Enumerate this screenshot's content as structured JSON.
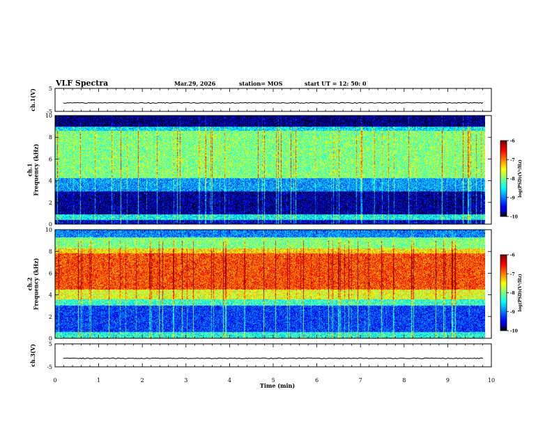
{
  "header": {
    "title": "VLF Spectra",
    "date": "Mar.29, 2026",
    "station": "station= MOS",
    "start": "start  UT =   12: 50: 0"
  },
  "chart_data": [
    {
      "type": "line",
      "name": "ch1-waveform",
      "ylabel": "ch.1(V)",
      "ylim": [
        -5,
        5
      ],
      "yticks": [
        5,
        -5
      ],
      "xlim": [
        0,
        10
      ],
      "y_baseline": -1.3
    },
    {
      "type": "heatmap",
      "name": "ch1-spectrogram",
      "ylabel": "ch.1\nFrequency (kHz)",
      "ylim": [
        0,
        10
      ],
      "yticks": [
        0,
        2,
        4,
        6,
        8,
        10
      ],
      "xlim": [
        0,
        10
      ],
      "data_end_min": 9.85,
      "colorbar": {
        "label": "log(PSD)(V²/Hz)",
        "range": [
          -10,
          -6
        ],
        "ticks": [
          -6,
          -7,
          -8,
          -9,
          -10
        ]
      },
      "bands": [
        {
          "from": 9.0,
          "to": 10.0,
          "level": -9.9
        },
        {
          "from": 8.6,
          "to": 9.0,
          "level": -8.6
        },
        {
          "from": 4.2,
          "to": 8.6,
          "level": -8.0
        },
        {
          "from": 3.0,
          "to": 4.2,
          "level": -8.9
        },
        {
          "from": 0.9,
          "to": 3.0,
          "level": -9.8
        },
        {
          "from": 0.4,
          "to": 0.9,
          "level": -8.5
        },
        {
          "from": 0.0,
          "to": 0.4,
          "level": -9.6
        }
      ]
    },
    {
      "type": "heatmap",
      "name": "ch2-spectrogram",
      "ylabel": "ch.2\nFrequency (kHz)",
      "ylim": [
        0,
        10
      ],
      "yticks": [
        0,
        2,
        4,
        6,
        8,
        10
      ],
      "xlim": [
        0,
        10
      ],
      "data_end_min": 9.85,
      "colorbar": {
        "label": "log(PSD)(V²/Hz)",
        "range": [
          -10,
          -6
        ],
        "ticks": [
          -6,
          -7,
          -8,
          -9,
          -10
        ]
      },
      "bands": [
        {
          "from": 9.3,
          "to": 10.0,
          "level": -9.0
        },
        {
          "from": 8.3,
          "to": 9.3,
          "level": -8.0
        },
        {
          "from": 7.8,
          "to": 8.3,
          "level": -7.4
        },
        {
          "from": 4.5,
          "to": 7.8,
          "level": -6.8
        },
        {
          "from": 3.6,
          "to": 4.5,
          "level": -7.6
        },
        {
          "from": 3.0,
          "to": 3.6,
          "level": -8.3
        },
        {
          "from": 0.6,
          "to": 3.0,
          "level": -9.3
        },
        {
          "from": 0.0,
          "to": 0.6,
          "level": -8.4
        }
      ]
    },
    {
      "type": "line",
      "name": "ch3-waveform",
      "ylabel": "ch.3(V)",
      "ylim": [
        -5,
        5
      ],
      "yticks": [
        5,
        -5
      ],
      "xlim": [
        0,
        10
      ],
      "y_baseline": -1.3
    }
  ],
  "xaxis": {
    "label": "Time (min)",
    "ticks": [
      0,
      1,
      2,
      3,
      4,
      5,
      6,
      7,
      8,
      9,
      10
    ]
  }
}
